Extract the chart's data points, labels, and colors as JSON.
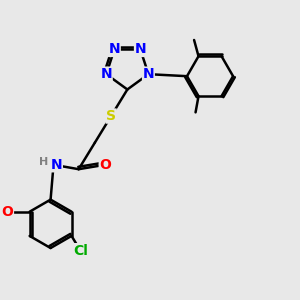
{
  "background_color": "#e8e8e8",
  "atom_colors": {
    "N": "#0000ff",
    "O": "#ff0000",
    "S": "#cccc00",
    "Cl": "#00aa00",
    "C": "#000000",
    "H": "#808080"
  },
  "bond_color": "#000000",
  "bond_width": 1.8,
  "font_size_atom": 10
}
